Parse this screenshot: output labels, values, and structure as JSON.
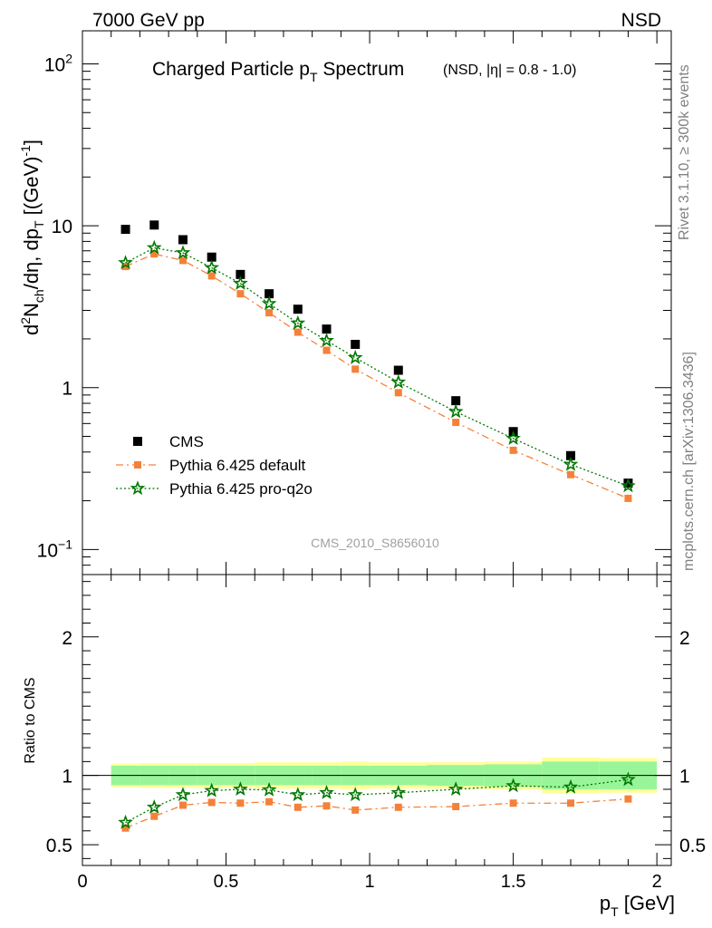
{
  "header": {
    "left": "7000 GeV pp",
    "right": "NSD"
  },
  "side_labels": {
    "rivet": "Rivet 3.1.10, ≥ 300k events",
    "mcplots": "mcplots.cern.ch [arXiv:1306.3436]"
  },
  "watermark": "CMS_2010_S8656010",
  "chart_data": [
    {
      "type": "scatter",
      "title": "Charged Particle p",
      "title_sub": "T",
      "title_tail": " Spectrum",
      "subtitle": "(NSD, |η| = 0.8 - 1.0)",
      "ylabel": "d²N_ch/dη, dp_T [(GeV)⁻¹]",
      "ylabel_parts": [
        "d",
        "2",
        "N",
        "ch",
        "/dη, dp",
        "T",
        " [(GeV)",
        "-1",
        "]"
      ],
      "yscale": "log",
      "ylim": [
        0.07,
        160
      ],
      "xlim": [
        0,
        2.05
      ],
      "y_ticks": [
        {
          "v": 100,
          "base": "10",
          "exp": "2"
        },
        {
          "v": 10,
          "base": "10",
          "exp": ""
        },
        {
          "v": 1,
          "base": "1",
          "exp": ""
        },
        {
          "v": 0.1,
          "base": "10",
          "exp": "−1"
        }
      ],
      "x": [
        0.15,
        0.25,
        0.35,
        0.45,
        0.55,
        0.65,
        0.75,
        0.85,
        0.95,
        1.1,
        1.3,
        1.5,
        1.7,
        1.9
      ],
      "legend_position": "bottom-left",
      "series": [
        {
          "name": "CMS",
          "values": [
            9.5,
            10.1,
            8.2,
            6.4,
            5.0,
            3.8,
            3.05,
            2.3,
            1.85,
            1.28,
            0.83,
            0.535,
            0.38,
            0.257
          ],
          "color": "#000000",
          "marker": "square"
        },
        {
          "name": "Pythia 6.425 default",
          "values": [
            5.6,
            6.7,
            6.1,
            4.9,
            3.8,
            2.9,
            2.2,
            1.7,
            1.3,
            0.93,
            0.61,
            0.41,
            0.29,
            0.207
          ],
          "color": "#f4813a",
          "marker": "square",
          "line": "dashdot"
        },
        {
          "name": "Pythia 6.425 pro-q2o",
          "values": [
            5.9,
            7.3,
            6.8,
            5.5,
            4.4,
            3.3,
            2.5,
            1.95,
            1.53,
            1.08,
            0.71,
            0.485,
            0.335,
            0.247
          ],
          "color": "#007700",
          "marker": "star",
          "line": "dotted"
        }
      ]
    },
    {
      "type": "scatter",
      "ylabel": "Ratio to CMS",
      "xlabel_main": "p",
      "xlabel_sub": "T",
      "xlabel_tail": " [GeV]",
      "ylim": [
        0.35,
        2.45
      ],
      "xlim": [
        0,
        2.05
      ],
      "y_ticks": [
        0.5,
        1,
        2
      ],
      "y_tick_labels": [
        "0.5",
        "1",
        "2"
      ],
      "x_ticks": [
        0,
        0.5,
        1,
        1.5,
        2
      ],
      "x_tick_labels": [
        "0",
        "0.5",
        "1",
        "1.5",
        "2"
      ],
      "x": [
        0.15,
        0.25,
        0.35,
        0.45,
        0.55,
        0.65,
        0.75,
        0.85,
        0.95,
        1.1,
        1.3,
        1.5,
        1.7,
        1.9
      ],
      "bands": {
        "edges": [
          0.1,
          0.2,
          0.3,
          0.4,
          0.5,
          0.6,
          0.7,
          0.8,
          0.9,
          1.0,
          1.2,
          1.4,
          1.6,
          1.8,
          2.0
        ],
        "inner": [
          0.07,
          0.07,
          0.07,
          0.07,
          0.07,
          0.07,
          0.07,
          0.07,
          0.07,
          0.07,
          0.075,
          0.08,
          0.1,
          0.1
        ],
        "outer": [
          0.085,
          0.09,
          0.09,
          0.09,
          0.09,
          0.095,
          0.095,
          0.095,
          0.1,
          0.095,
          0.095,
          0.1,
          0.13,
          0.125
        ],
        "inner_color": "#99f599",
        "outer_color": "#ffff99"
      },
      "series": [
        {
          "name": "Pythia 6.425 default",
          "values": [
            0.62,
            0.705,
            0.785,
            0.805,
            0.8,
            0.81,
            0.77,
            0.78,
            0.75,
            0.77,
            0.775,
            0.8,
            0.8,
            0.83
          ],
          "color": "#f4813a",
          "marker": "square",
          "line": "dashdot"
        },
        {
          "name": "Pythia 6.425 pro-q2o",
          "values": [
            0.66,
            0.77,
            0.86,
            0.89,
            0.9,
            0.895,
            0.86,
            0.875,
            0.86,
            0.875,
            0.9,
            0.925,
            0.915,
            0.97
          ],
          "color": "#007700",
          "marker": "star",
          "line": "dotted"
        }
      ]
    }
  ]
}
